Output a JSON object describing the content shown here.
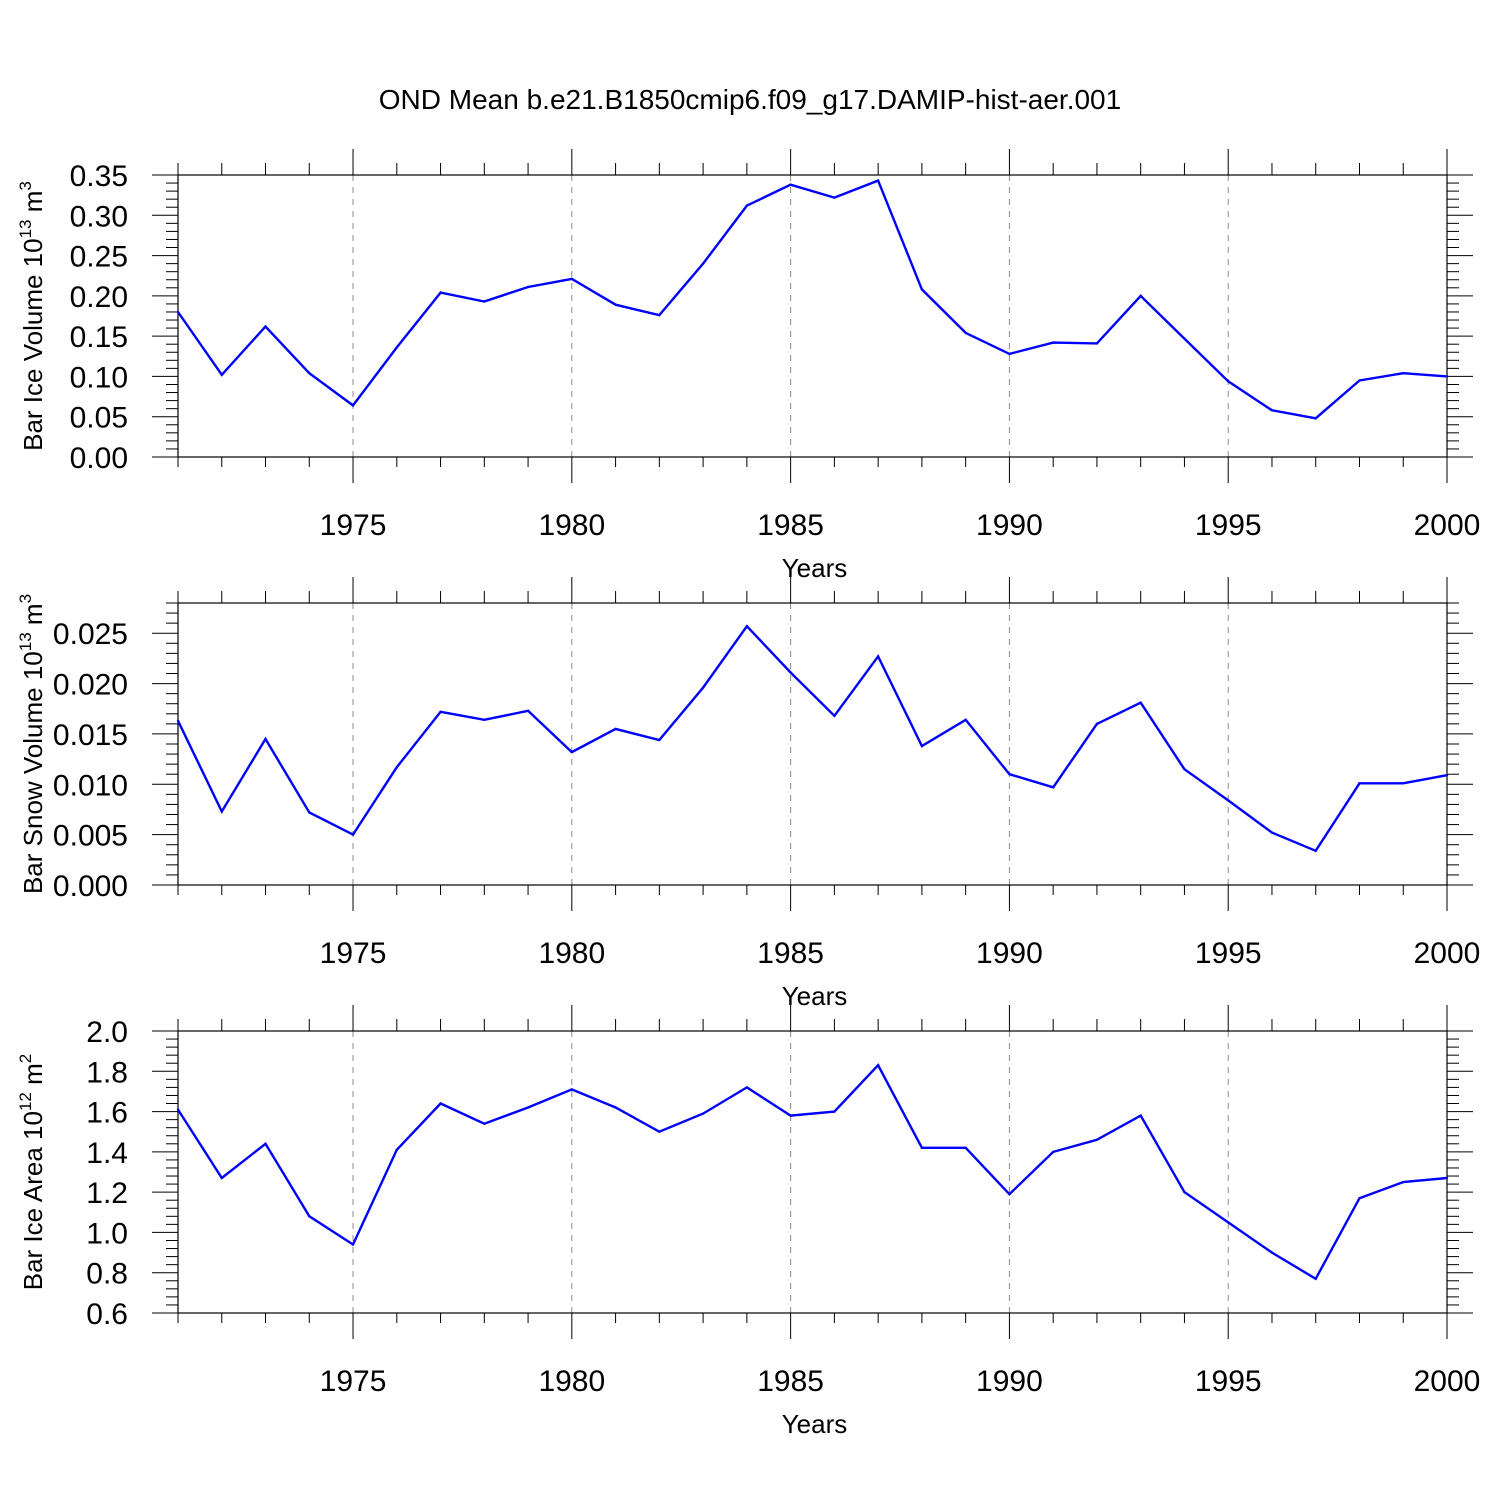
{
  "figure": {
    "title": "OND Mean b.e21.B1850cmip6.f09_g17.DAMIP-hist-aer.001",
    "line_color": "#0000ff",
    "grid_color": "#888888"
  },
  "chart_data": [
    {
      "type": "line",
      "name": "bar-ice-volume",
      "ylabel_main": "Bar Ice Volume 10",
      "ylabel_sup": "13",
      "ylabel_unit": " m",
      "ylabel_unit_sup": "3",
      "xlabel": "Years",
      "xlim": [
        1971,
        2000
      ],
      "ylim": [
        0,
        0.35
      ],
      "yticks": [
        0,
        0.05,
        0.1,
        0.15,
        0.2,
        0.25,
        0.3,
        0.35
      ],
      "ytick_labels": [
        "0.00",
        "0.05",
        "0.10",
        "0.15",
        "0.20",
        "0.25",
        "0.30",
        "0.35"
      ],
      "xticks": [
        1975,
        1980,
        1985,
        1990,
        1995,
        2000
      ],
      "xtick_labels": [
        "1975",
        "1980",
        "1985",
        "1990",
        "1995",
        "2000"
      ],
      "x": [
        1971,
        1972,
        1973,
        1974,
        1975,
        1976,
        1977,
        1978,
        1979,
        1980,
        1981,
        1982,
        1983,
        1984,
        1985,
        1986,
        1987,
        1988,
        1989,
        1990,
        1991,
        1992,
        1993,
        1994,
        1995,
        1996,
        1997,
        1998,
        1999,
        2000
      ],
      "values": [
        0.18,
        0.102,
        0.162,
        0.104,
        0.064,
        0.136,
        0.204,
        0.193,
        0.211,
        0.221,
        0.189,
        0.176,
        0.24,
        0.312,
        0.338,
        0.322,
        0.343,
        0.208,
        0.154,
        0.128,
        0.142,
        0.141,
        0.2,
        0.147,
        0.094,
        0.058,
        0.048,
        0.095,
        0.104,
        0.1
      ]
    },
    {
      "type": "line",
      "name": "bar-snow-volume",
      "ylabel_main": "Bar Snow Volume 10",
      "ylabel_sup": "13",
      "ylabel_unit": " m",
      "ylabel_unit_sup": "3",
      "xlabel": "Years",
      "xlim": [
        1971,
        2000
      ],
      "ylim": [
        0,
        0.028
      ],
      "yticks": [
        0,
        0.005,
        0.01,
        0.015,
        0.02,
        0.025
      ],
      "ytick_labels": [
        "0.000",
        "0.005",
        "0.010",
        "0.015",
        "0.020",
        "0.025"
      ],
      "xticks": [
        1975,
        1980,
        1985,
        1990,
        1995,
        2000
      ],
      "xtick_labels": [
        "1975",
        "1980",
        "1985",
        "1990",
        "1995",
        "2000"
      ],
      "x": [
        1971,
        1972,
        1973,
        1974,
        1975,
        1976,
        1977,
        1978,
        1979,
        1980,
        1981,
        1982,
        1983,
        1984,
        1985,
        1986,
        1987,
        1988,
        1989,
        1990,
        1991,
        1992,
        1993,
        1994,
        1995,
        1996,
        1997,
        1998,
        1999,
        2000
      ],
      "values": [
        0.0163,
        0.0073,
        0.0145,
        0.0072,
        0.005,
        0.0117,
        0.0172,
        0.0164,
        0.0173,
        0.0132,
        0.0155,
        0.0144,
        0.0196,
        0.0257,
        0.0211,
        0.0168,
        0.0227,
        0.0138,
        0.0164,
        0.011,
        0.0097,
        0.016,
        0.0181,
        0.0115,
        0.0084,
        0.0052,
        0.0034,
        0.0101,
        0.0101,
        0.0109
      ]
    },
    {
      "type": "line",
      "name": "bar-ice-area",
      "ylabel_main": "Bar Ice Area 10",
      "ylabel_sup": "12",
      "ylabel_unit": " m",
      "ylabel_unit_sup": "2",
      "xlabel": "Years",
      "xlim": [
        1971,
        2000
      ],
      "ylim": [
        0.6,
        2.0
      ],
      "yticks": [
        0.6,
        0.8,
        1.0,
        1.2,
        1.4,
        1.6,
        1.8,
        2.0
      ],
      "ytick_labels": [
        "0.6",
        "0.8",
        "1.0",
        "1.2",
        "1.4",
        "1.6",
        "1.8",
        "2.0"
      ],
      "xticks": [
        1975,
        1980,
        1985,
        1990,
        1995,
        2000
      ],
      "xtick_labels": [
        "1975",
        "1980",
        "1985",
        "1990",
        "1995",
        "2000"
      ],
      "x": [
        1971,
        1972,
        1973,
        1974,
        1975,
        1976,
        1977,
        1978,
        1979,
        1980,
        1981,
        1982,
        1983,
        1984,
        1985,
        1986,
        1987,
        1988,
        1989,
        1990,
        1991,
        1992,
        1993,
        1994,
        1995,
        1996,
        1997,
        1998,
        1999,
        2000
      ],
      "values": [
        1.61,
        1.27,
        1.44,
        1.08,
        0.94,
        1.41,
        1.64,
        1.54,
        1.62,
        1.71,
        1.62,
        1.5,
        1.59,
        1.72,
        1.58,
        1.6,
        1.83,
        1.42,
        1.42,
        1.19,
        1.4,
        1.46,
        1.58,
        1.2,
        1.05,
        0.9,
        0.77,
        1.17,
        1.25,
        1.27
      ]
    }
  ]
}
